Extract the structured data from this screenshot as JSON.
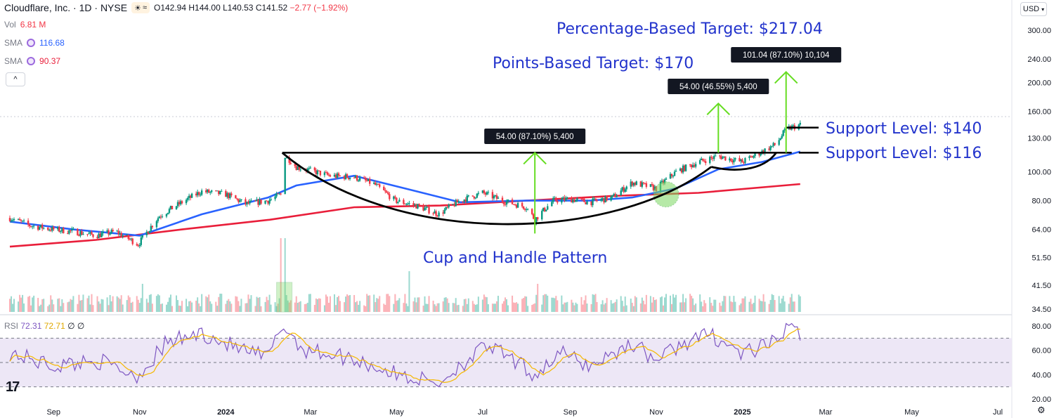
{
  "header": {
    "symbol_title": "Cloudflare, Inc. · 1D · NYSE",
    "open": "O142.94",
    "high": "H144.00",
    "low": "L140.53",
    "close": "C141.52",
    "change": "−2.77 (−1.92%)",
    "badge": "≈"
  },
  "indicators": {
    "vol_label": "Vol",
    "vol_value": "6.81 M",
    "sma1_label": "SMA",
    "sma1_value": "116.68",
    "sma2_label": "SMA",
    "sma2_value": "90.37",
    "rsi_label": "RSI",
    "rsi_value": "72.31",
    "rsi_ma_value": "72.71",
    "rsi_extra1": "∅",
    "rsi_extra2": "∅",
    "collapse_glyph": "^"
  },
  "currency": "USD",
  "colors": {
    "up": "#089981",
    "down": "#f23645",
    "sma_short": "#2962ff",
    "sma_long": "#e91e3a",
    "annotation_text": "#2233cc",
    "arrow": "#66dd22",
    "rsi_line": "#7e57c2",
    "rsi_ma": "#f5b800",
    "rsi_band": "#ede7f6"
  },
  "chart_data": {
    "type": "candlestick",
    "title": "Cloudflare, Inc. · 1D · NYSE",
    "y_axis_scale": "log",
    "y_ticks": [
      "300.00",
      "240.00",
      "200.00",
      "160.00",
      "130.00",
      "100.00",
      "80.00",
      "64.00",
      "51.50",
      "41.50",
      "34.50"
    ],
    "x_ticks": [
      "Sep",
      "Nov",
      "2024",
      "Mar",
      "May",
      "Jul",
      "Sep",
      "Nov",
      "2025",
      "Mar",
      "May",
      "Jul"
    ],
    "rsi_ticks": [
      "80.00",
      "60.00",
      "40.00",
      "20.00"
    ],
    "rsi_levels": [
      70,
      50,
      30
    ],
    "price_path": [
      [
        "2023-08-01",
        70
      ],
      [
        "2023-08-15",
        66
      ],
      [
        "2023-09-01",
        64
      ],
      [
        "2023-09-15",
        63
      ],
      [
        "2023-10-01",
        61
      ],
      [
        "2023-10-15",
        63
      ],
      [
        "2023-10-31",
        57
      ],
      [
        "2023-11-15",
        71
      ],
      [
        "2023-12-01",
        79
      ],
      [
        "2023-12-15",
        86
      ],
      [
        "2024-01-01",
        84
      ],
      [
        "2024-01-15",
        78
      ],
      [
        "2024-01-31",
        80
      ],
      [
        "2024-02-09",
        84
      ],
      [
        "2024-02-10",
        116
      ],
      [
        "2024-02-20",
        104
      ],
      [
        "2024-03-01",
        101
      ],
      [
        "2024-03-15",
        97
      ],
      [
        "2024-04-01",
        96
      ],
      [
        "2024-04-15",
        91
      ],
      [
        "2024-04-30",
        80
      ],
      [
        "2024-05-15",
        77
      ],
      [
        "2024-05-31",
        72
      ],
      [
        "2024-06-15",
        80
      ],
      [
        "2024-07-01",
        85
      ],
      [
        "2024-07-15",
        80
      ],
      [
        "2024-08-01",
        76
      ],
      [
        "2024-08-07",
        69
      ],
      [
        "2024-08-20",
        80
      ],
      [
        "2024-09-01",
        81
      ],
      [
        "2024-09-15",
        79
      ],
      [
        "2024-10-01",
        82
      ],
      [
        "2024-10-15",
        92
      ],
      [
        "2024-11-01",
        88
      ],
      [
        "2024-11-15",
        100
      ],
      [
        "2024-12-01",
        108
      ],
      [
        "2024-12-15",
        113
      ],
      [
        "2025-01-01",
        108
      ],
      [
        "2025-01-15",
        117
      ],
      [
        "2025-01-25",
        124
      ],
      [
        "2025-02-01",
        139
      ],
      [
        "2025-02-11",
        144
      ]
    ],
    "sma_short_path": [
      [
        "2023-08-01",
        68
      ],
      [
        "2023-09-15",
        64
      ],
      [
        "2023-11-01",
        61
      ],
      [
        "2023-12-15",
        72
      ],
      [
        "2024-01-31",
        82
      ],
      [
        "2024-02-20",
        90
      ],
      [
        "2024-04-01",
        97
      ],
      [
        "2024-05-15",
        86
      ],
      [
        "2024-06-15",
        79
      ],
      [
        "2024-08-01",
        80
      ],
      [
        "2024-09-15",
        80
      ],
      [
        "2024-10-15",
        82
      ],
      [
        "2024-11-15",
        88
      ],
      [
        "2024-12-15",
        102
      ],
      [
        "2025-01-15",
        108
      ],
      [
        "2025-02-11",
        117
      ]
    ],
    "sma_long_path": [
      [
        "2023-08-01",
        56
      ],
      [
        "2023-10-01",
        59
      ],
      [
        "2023-12-01",
        64
      ],
      [
        "2024-02-01",
        69
      ],
      [
        "2024-04-01",
        76
      ],
      [
        "2024-06-01",
        77
      ],
      [
        "2024-08-01",
        80
      ],
      [
        "2024-10-01",
        83
      ],
      [
        "2024-12-01",
        85
      ],
      [
        "2025-02-11",
        91
      ]
    ],
    "rsi_path": [
      [
        "2023-08-01",
        58
      ],
      [
        "2023-09-01",
        47
      ],
      [
        "2023-10-01",
        52
      ],
      [
        "2023-10-31",
        39
      ],
      [
        "2023-11-20",
        66
      ],
      [
        "2023-12-15",
        74
      ],
      [
        "2024-01-15",
        59
      ],
      [
        "2024-01-31",
        54
      ],
      [
        "2024-02-10",
        81
      ],
      [
        "2024-02-25",
        61
      ],
      [
        "2024-04-01",
        53
      ],
      [
        "2024-05-01",
        40
      ],
      [
        "2024-05-31",
        33
      ],
      [
        "2024-06-15",
        48
      ],
      [
        "2024-07-05",
        64
      ],
      [
        "2024-08-07",
        40
      ],
      [
        "2024-08-25",
        58
      ],
      [
        "2024-09-15",
        47
      ],
      [
        "2024-10-15",
        66
      ],
      [
        "2024-11-01",
        52
      ],
      [
        "2024-11-20",
        66
      ],
      [
        "2024-12-10",
        73
      ],
      [
        "2025-01-01",
        57
      ],
      [
        "2025-01-15",
        62
      ],
      [
        "2025-01-25",
        67
      ],
      [
        "2025-02-01",
        80
      ],
      [
        "2025-02-11",
        73
      ]
    ],
    "annotations": {
      "percentage_target": "Percentage-Based Target: $217.04",
      "points_target": "Points-Based Target: $170",
      "support_140": "Support Level: $140",
      "support_116": "Support Level: $116",
      "pattern": "Cup and Handle Pattern",
      "box_cup": "54.00 (87.10%) 5,400",
      "box_points": "54.00 (46.55%) 5,400",
      "box_pct": "101.04 (87.10%) 10,104"
    }
  }
}
